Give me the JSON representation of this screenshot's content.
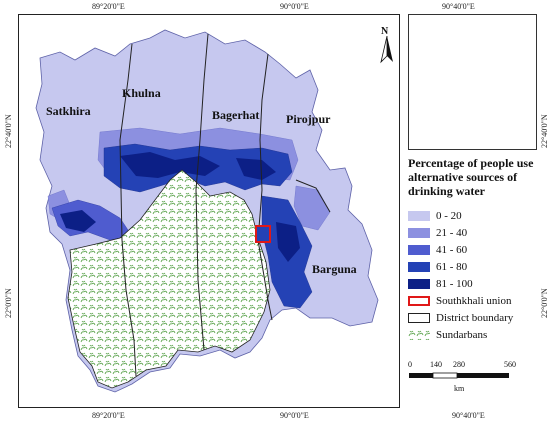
{
  "coordinates": {
    "top": [
      "89°20'0\"E",
      "90°0'0\"E",
      "90°40'0\"E"
    ],
    "bottom": [
      "89°20'0\"E",
      "90°0'0\"E",
      "90°40'0\"E"
    ],
    "left": [
      "22°40'0\"N",
      "22°0'0\"N"
    ],
    "right": [
      "22°40'0\"N",
      "22°0'0\"N"
    ]
  },
  "districts": [
    "Satkhira",
    "Khulna",
    "Bagerhat",
    "Pirojpur",
    "Barguna"
  ],
  "north_arrow": {
    "label": "N",
    "icon": "north-arrow-icon"
  },
  "legend": {
    "title": "Percentage of people use alternative sources of drinking water",
    "classes": [
      {
        "label": "0 - 20",
        "color": "#c6c8ef"
      },
      {
        "label": "21 - 40",
        "color": "#8c90e0"
      },
      {
        "label": "41 - 60",
        "color": "#4f5ccf"
      },
      {
        "label": "61 - 80",
        "color": "#2442b5"
      },
      {
        "label": "81 - 100",
        "color": "#0c1f86"
      }
    ],
    "southkhali": {
      "label": "Southkhali union",
      "color": "#e01818"
    },
    "district_boundary": {
      "label": "District boundary"
    },
    "sundarbans": {
      "label": "Sundarbans",
      "color": "#5aa84a"
    }
  },
  "scale": {
    "ticks": [
      "0",
      "140",
      "280",
      "560"
    ],
    "unit": "km"
  }
}
